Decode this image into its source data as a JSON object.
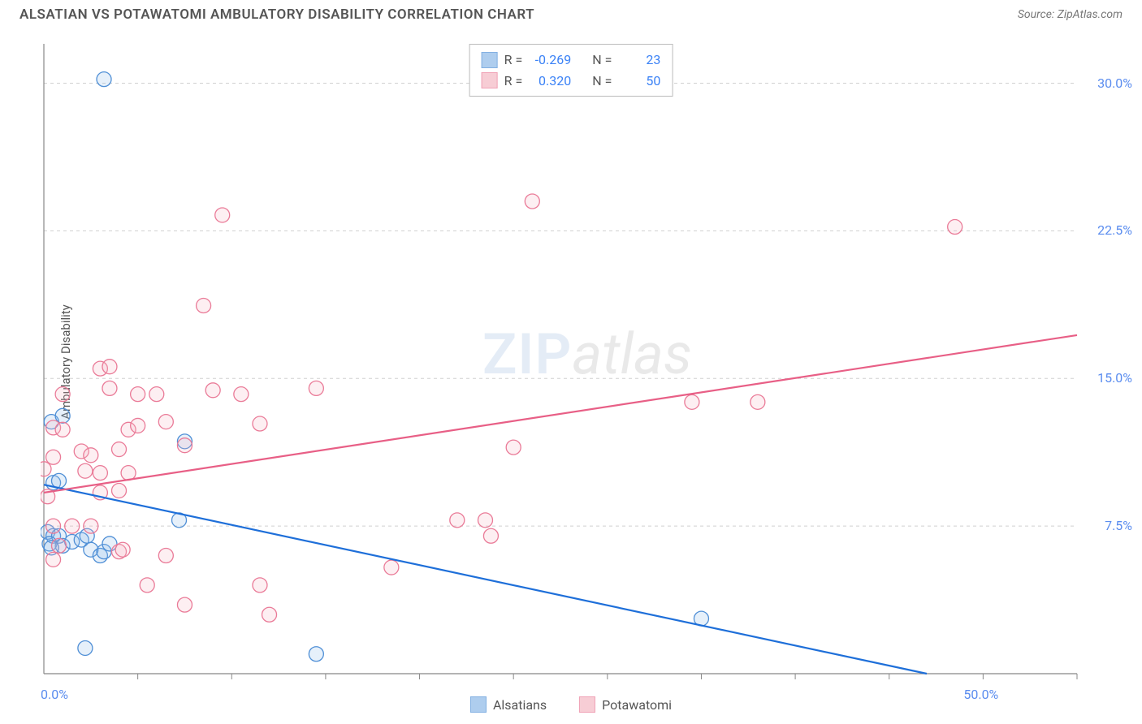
{
  "header": {
    "title": "ALSATIAN VS POTAWATOMI AMBULATORY DISABILITY CORRELATION CHART",
    "source_prefix": "Source: ",
    "source_name": "ZipAtlas.com"
  },
  "ylabel": "Ambulatory Disability",
  "watermark": {
    "zip": "ZIP",
    "atlas": "atlas"
  },
  "chart": {
    "type": "scatter",
    "background_color": "#ffffff",
    "grid_color": "#d0d0d0",
    "axis_color": "#888888",
    "xlim": [
      0,
      55
    ],
    "ylim": [
      0,
      32
    ],
    "x_tickmarks": [
      5,
      10,
      15,
      20,
      25,
      30,
      35,
      40,
      45,
      50,
      55
    ],
    "x_tick_labels": [
      {
        "v": 0,
        "label": "0.0%"
      },
      {
        "v": 50,
        "label": "50.0%"
      }
    ],
    "y_gridlines": [
      7.5,
      15.0,
      22.5,
      30.0
    ],
    "y_tick_labels": [
      {
        "v": 7.5,
        "label": "7.5%"
      },
      {
        "v": 15.0,
        "label": "15.0%"
      },
      {
        "v": 22.5,
        "label": "22.5%"
      },
      {
        "v": 30.0,
        "label": "30.0%"
      }
    ],
    "marker_radius": 9,
    "marker_stroke_width": 1.3,
    "marker_fill_opacity": 0.22,
    "line_width": 2.2,
    "series": [
      {
        "name": "Alsatians",
        "color_fill": "#8db9e8",
        "color_stroke": "#4f8fd6",
        "line_color": "#1e6fd9",
        "R": "-0.269",
        "N": "23",
        "trend": {
          "x1": 0,
          "y1": 9.6,
          "x2": 47,
          "y2": 0
        },
        "points": [
          [
            3.2,
            30.2
          ],
          [
            0.4,
            12.8
          ],
          [
            1.0,
            13.1
          ],
          [
            7.5,
            11.8
          ],
          [
            0.5,
            9.7
          ],
          [
            0.8,
            9.8
          ],
          [
            0.2,
            7.2
          ],
          [
            0.5,
            7.0
          ],
          [
            0.8,
            7.0
          ],
          [
            0.3,
            6.6
          ],
          [
            1.0,
            6.5
          ],
          [
            1.5,
            6.7
          ],
          [
            2.0,
            6.8
          ],
          [
            2.3,
            7.0
          ],
          [
            2.5,
            6.3
          ],
          [
            3.0,
            6.0
          ],
          [
            3.2,
            6.2
          ],
          [
            3.5,
            6.6
          ],
          [
            7.2,
            7.8
          ],
          [
            0.4,
            6.4
          ],
          [
            14.5,
            1.0
          ],
          [
            35.0,
            2.8
          ],
          [
            2.2,
            1.3
          ]
        ]
      },
      {
        "name": "Potawatomi",
        "color_fill": "#f5b8c4",
        "color_stroke": "#ea7b98",
        "line_color": "#e85f86",
        "R": "0.320",
        "N": "50",
        "trend": {
          "x1": 0,
          "y1": 9.2,
          "x2": 55,
          "y2": 17.2
        },
        "points": [
          [
            9.5,
            23.3
          ],
          [
            26.0,
            24.0
          ],
          [
            48.5,
            22.7
          ],
          [
            8.5,
            18.7
          ],
          [
            3.0,
            15.5
          ],
          [
            3.5,
            15.6
          ],
          [
            1.0,
            14.2
          ],
          [
            3.5,
            14.5
          ],
          [
            5.0,
            14.2
          ],
          [
            6.0,
            14.2
          ],
          [
            9.0,
            14.4
          ],
          [
            10.5,
            14.2
          ],
          [
            14.5,
            14.5
          ],
          [
            34.5,
            13.8
          ],
          [
            38.0,
            13.8
          ],
          [
            0.5,
            12.5
          ],
          [
            1.0,
            12.4
          ],
          [
            4.5,
            12.4
          ],
          [
            5.0,
            12.6
          ],
          [
            6.5,
            12.8
          ],
          [
            11.5,
            12.7
          ],
          [
            25.0,
            11.5
          ],
          [
            0.5,
            11.0
          ],
          [
            2.0,
            11.3
          ],
          [
            2.5,
            11.1
          ],
          [
            4.0,
            11.4
          ],
          [
            7.5,
            11.6
          ],
          [
            0.0,
            10.4
          ],
          [
            2.2,
            10.3
          ],
          [
            3.0,
            10.2
          ],
          [
            4.5,
            10.2
          ],
          [
            0.2,
            9.0
          ],
          [
            3.0,
            9.2
          ],
          [
            4.0,
            9.3
          ],
          [
            0.5,
            7.5
          ],
          [
            1.5,
            7.5
          ],
          [
            2.5,
            7.5
          ],
          [
            22.0,
            7.8
          ],
          [
            23.5,
            7.8
          ],
          [
            23.8,
            7.0
          ],
          [
            0.8,
            6.5
          ],
          [
            4.0,
            6.2
          ],
          [
            4.2,
            6.3
          ],
          [
            6.5,
            6.0
          ],
          [
            18.5,
            5.4
          ],
          [
            5.5,
            4.5
          ],
          [
            11.5,
            4.5
          ],
          [
            7.5,
            3.5
          ],
          [
            12.0,
            3.0
          ],
          [
            0.5,
            5.8
          ]
        ]
      }
    ]
  },
  "legend_bottom": [
    {
      "label": "Alsatians",
      "fill": "#8db9e8",
      "stroke": "#4f8fd6"
    },
    {
      "label": "Potawatomi",
      "fill": "#f5b8c4",
      "stroke": "#ea7b98"
    }
  ],
  "stats_labels": {
    "R": "R =",
    "N": "N ="
  }
}
